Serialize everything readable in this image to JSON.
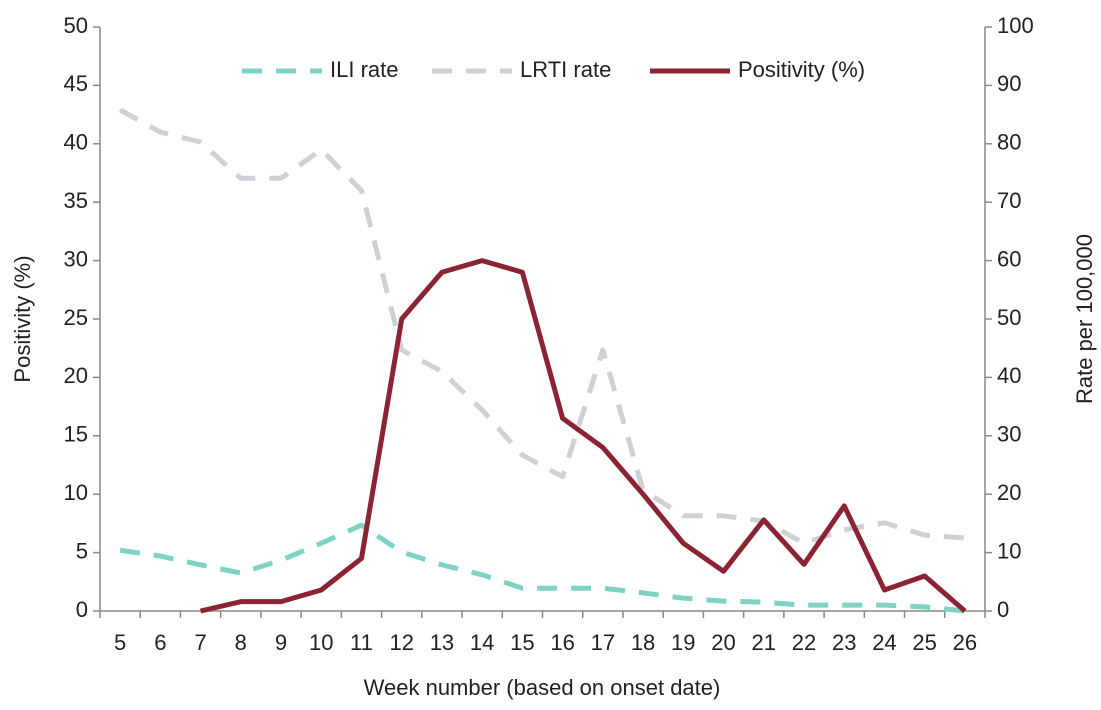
{
  "chart_data": {
    "type": "line",
    "x_label": "Week number (based on onset date)",
    "y_label": "Positivity (%)",
    "y2_label": "Rate per 100,000",
    "categories": [
      "5",
      "6",
      "7",
      "8",
      "9",
      "10",
      "11",
      "12",
      "13",
      "14",
      "15",
      "16",
      "17",
      "18",
      "19",
      "20",
      "21",
      "22",
      "23",
      "24",
      "25",
      "26"
    ],
    "series": [
      {
        "name": "ILI rate",
        "color": "#7fd3c4",
        "axis": "y2",
        "dash": "dashed",
        "values": [
          10.4,
          9.4,
          7.9,
          6.5,
          8.7,
          11.6,
          14.7,
          10.1,
          7.9,
          6.2,
          3.9,
          3.9,
          3.9,
          3.1,
          2.2,
          1.7,
          1.5,
          1.0,
          1.0,
          1.0,
          0.7,
          0
        ]
      },
      {
        "name": "LRTI rate",
        "color": "#cdd1d6",
        "axis": "y2",
        "dash": "dashed",
        "values": [
          85.8,
          82,
          80.3,
          74.1,
          74.1,
          79,
          72,
          44.7,
          41,
          34.4,
          26.7,
          23,
          44.7,
          20.7,
          16.3,
          16.3,
          15.4,
          11.6,
          13.9,
          15.1,
          13,
          12.5
        ]
      },
      {
        "name": "Positivity (%)",
        "color": "#8b2332",
        "axis": "y",
        "dash": "solid",
        "values": [
          null,
          null,
          0,
          0.8,
          0.8,
          1.8,
          4.5,
          25,
          29,
          30,
          29,
          16.5,
          14,
          10,
          5.8,
          3.4,
          7.8,
          4,
          9,
          1.8,
          3,
          0
        ]
      }
    ],
    "ylim": [
      0,
      50
    ],
    "yticks": [
      0,
      5,
      10,
      15,
      20,
      25,
      30,
      35,
      40,
      45,
      50
    ],
    "y2lim": [
      0,
      100
    ],
    "y2ticks": [
      0,
      10,
      20,
      30,
      40,
      50,
      60,
      70,
      80,
      90,
      100
    ],
    "legend": "top"
  }
}
